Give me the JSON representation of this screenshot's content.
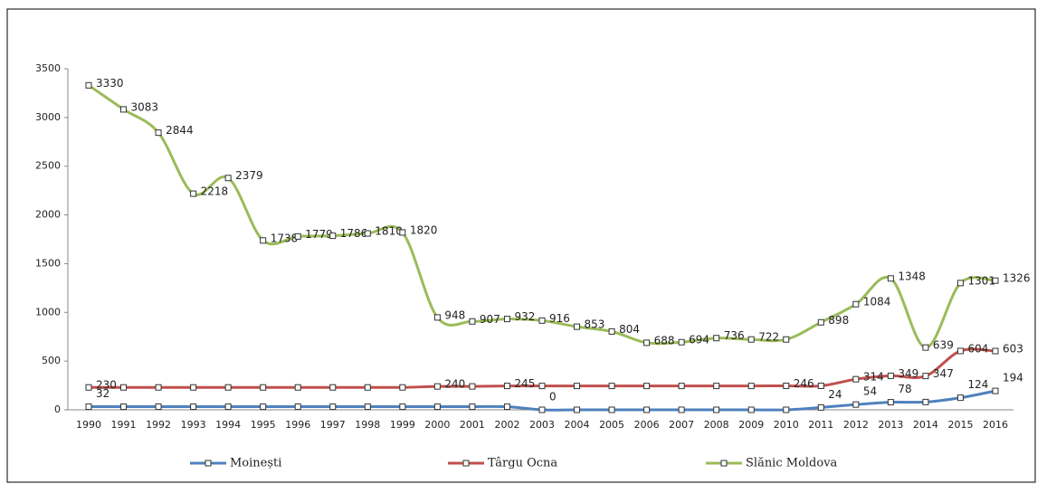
{
  "chart_data": {
    "type": "line",
    "categories": [
      "1990",
      "1991",
      "1992",
      "1993",
      "1994",
      "1995",
      "1996",
      "1997",
      "1998",
      "1999",
      "2000",
      "2001",
      "2002",
      "2003",
      "2004",
      "2005",
      "2006",
      "2007",
      "2008",
      "2009",
      "2010",
      "2011",
      "2012",
      "2013",
      "2014",
      "2015",
      "2016"
    ],
    "series": [
      {
        "name": "Moinești",
        "color": "#4f81bd",
        "values": [
          32,
          32,
          32,
          32,
          32,
          32,
          32,
          32,
          32,
          32,
          32,
          32,
          32,
          0,
          0,
          0,
          0,
          0,
          0,
          0,
          0,
          24,
          54,
          78,
          80,
          124,
          194
        ],
        "value_labels": [
          "32",
          null,
          null,
          null,
          null,
          null,
          null,
          null,
          null,
          null,
          null,
          null,
          null,
          "0",
          null,
          null,
          null,
          null,
          null,
          null,
          null,
          "24",
          "54",
          "78",
          null,
          "124",
          "194"
        ]
      },
      {
        "name": "Târgu Ocna",
        "color": "#c0504d",
        "values": [
          230,
          230,
          230,
          230,
          230,
          230,
          230,
          230,
          230,
          230,
          240,
          240,
          245,
          245,
          245,
          245,
          245,
          245,
          245,
          245,
          246,
          246,
          314,
          349,
          347,
          604,
          603
        ],
        "value_labels": [
          "230",
          null,
          null,
          null,
          null,
          null,
          null,
          null,
          null,
          null,
          "240",
          null,
          "245",
          null,
          null,
          null,
          null,
          null,
          null,
          null,
          "246",
          null,
          "314",
          "349",
          "347",
          "604",
          "603"
        ]
      },
      {
        "name": "Slănic Moldova",
        "color": "#9bbb59",
        "values": [
          3330,
          3083,
          2844,
          2218,
          2379,
          1738,
          1779,
          1786,
          1810,
          1820,
          948,
          907,
          932,
          916,
          853,
          804,
          688,
          694,
          736,
          722,
          722,
          898,
          1084,
          1348,
          639,
          1301,
          1326
        ],
        "value_labels": [
          "3330",
          "3083",
          "2844",
          "2218",
          "2379",
          "1738",
          "1779",
          "1786",
          "1810",
          "1820",
          "948",
          "907",
          "932",
          "916",
          "853",
          "804",
          "688",
          "694",
          "736",
          "722",
          null,
          "898",
          "1084",
          "1348",
          "639",
          "1301",
          "1326"
        ]
      }
    ],
    "ylim": [
      0,
      3500
    ],
    "yticks": [
      0,
      500,
      1000,
      1500,
      2000,
      2500,
      3000,
      3500
    ],
    "legend": "bottom"
  }
}
